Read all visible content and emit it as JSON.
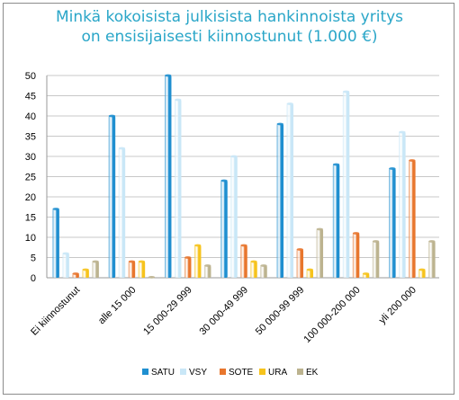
{
  "chart_data": {
    "type": "bar",
    "title": [
      "Minkä kokoisista julkisista hankinnoista yritys",
      "on ensisijaisesti kiinnostunut (1.000 €)"
    ],
    "categories": [
      "Ei kiinnostunut",
      "alle 15 000",
      "15 000-29 999",
      "30 000-49 999",
      "50 000-99 999",
      "100 000-200 000",
      "yli 200 000"
    ],
    "series": [
      {
        "name": "SATU",
        "color": "#1f8fd0",
        "values": [
          17,
          40,
          50,
          24,
          38,
          28,
          27
        ]
      },
      {
        "name": "VSY",
        "color": "#c9e7f7",
        "values": [
          6,
          32,
          44,
          30,
          43,
          46,
          36
        ]
      },
      {
        "name": "SOTE",
        "color": "#e8762d",
        "values": [
          1,
          4,
          5,
          8,
          7,
          11,
          29
        ]
      },
      {
        "name": "URA",
        "color": "#f6c31c",
        "values": [
          2,
          4,
          8,
          4,
          2,
          1,
          2
        ]
      },
      {
        "name": "EK",
        "color": "#bcb38f",
        "values": [
          4,
          0,
          3,
          3,
          12,
          9,
          9
        ]
      }
    ],
    "yticks": [
      0,
      5,
      10,
      15,
      20,
      25,
      30,
      35,
      40,
      45,
      50
    ],
    "ylim": [
      0,
      50
    ],
    "grid": true,
    "legend": "bottom"
  }
}
